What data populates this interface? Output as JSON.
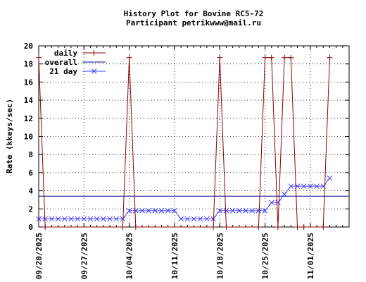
{
  "chart_data": {
    "type": "line",
    "title": "History Plot for Bovine RC5-72",
    "subtitle": "Participant petrikwww@mail.ru",
    "xlabel": "",
    "ylabel": "Rate (kkeys/sec)",
    "ylim": [
      0,
      20
    ],
    "yticks": [
      "0",
      "2",
      "4",
      "6",
      "8",
      "10",
      "12",
      "14",
      "16",
      "18",
      "20"
    ],
    "xlim": [
      "2025-09-20",
      "2025-11-07"
    ],
    "xticks": [
      "09/20/2025",
      "09/27/2025",
      "10/04/2025",
      "10/11/2025",
      "10/18/2025",
      "10/25/2025",
      "11/01/2025"
    ],
    "grid": true,
    "legend_position": "top-left",
    "series": [
      {
        "name": "daily",
        "color": "#8b0000",
        "marker": "plus",
        "x": [
          "2025-09-20",
          "2025-09-21",
          "2025-10-03",
          "2025-10-04",
          "2025-10-05",
          "2025-10-17",
          "2025-10-18",
          "2025-10-19",
          "2025-10-24",
          "2025-10-25",
          "2025-10-26",
          "2025-10-27",
          "2025-10-28",
          "2025-10-29",
          "2025-10-30",
          "2025-10-31",
          "2025-11-03",
          "2025-11-04"
        ],
        "values": [
          18.7,
          0,
          0,
          18.7,
          0,
          0,
          18.7,
          0,
          0,
          18.7,
          18.7,
          0,
          18.7,
          18.7,
          0,
          0,
          0,
          18.7
        ]
      },
      {
        "name": "overall",
        "color": "#00008b",
        "marker": "none",
        "x": [
          "2025-09-20",
          "2025-11-07"
        ],
        "values": [
          3.4,
          3.4
        ]
      },
      {
        "name": "21 day",
        "color": "#4040ff",
        "marker": "cross",
        "x": [
          "2025-09-20",
          "2025-09-21",
          "2025-09-22",
          "2025-09-23",
          "2025-09-24",
          "2025-09-25",
          "2025-09-26",
          "2025-09-27",
          "2025-09-28",
          "2025-09-29",
          "2025-09-30",
          "2025-10-01",
          "2025-10-02",
          "2025-10-03",
          "2025-10-04",
          "2025-10-05",
          "2025-10-06",
          "2025-10-07",
          "2025-10-08",
          "2025-10-09",
          "2025-10-10",
          "2025-10-11",
          "2025-10-12",
          "2025-10-13",
          "2025-10-14",
          "2025-10-15",
          "2025-10-16",
          "2025-10-17",
          "2025-10-18",
          "2025-10-19",
          "2025-10-20",
          "2025-10-21",
          "2025-10-22",
          "2025-10-23",
          "2025-10-24",
          "2025-10-25",
          "2025-10-26",
          "2025-10-27",
          "2025-10-28",
          "2025-10-29",
          "2025-10-30",
          "2025-10-31",
          "2025-11-01",
          "2025-11-02",
          "2025-11-03",
          "2025-11-04"
        ],
        "values": [
          0.9,
          0.9,
          0.9,
          0.9,
          0.9,
          0.9,
          0.9,
          0.9,
          0.9,
          0.9,
          0.9,
          0.9,
          0.9,
          0.9,
          1.8,
          1.8,
          1.8,
          1.8,
          1.8,
          1.8,
          1.8,
          1.8,
          0.9,
          0.9,
          0.9,
          0.9,
          0.9,
          0.9,
          1.8,
          1.8,
          1.8,
          1.8,
          1.8,
          1.8,
          1.8,
          1.8,
          2.7,
          2.7,
          3.6,
          4.5,
          4.5,
          4.5,
          4.5,
          4.5,
          4.5,
          5.4
        ]
      }
    ]
  }
}
